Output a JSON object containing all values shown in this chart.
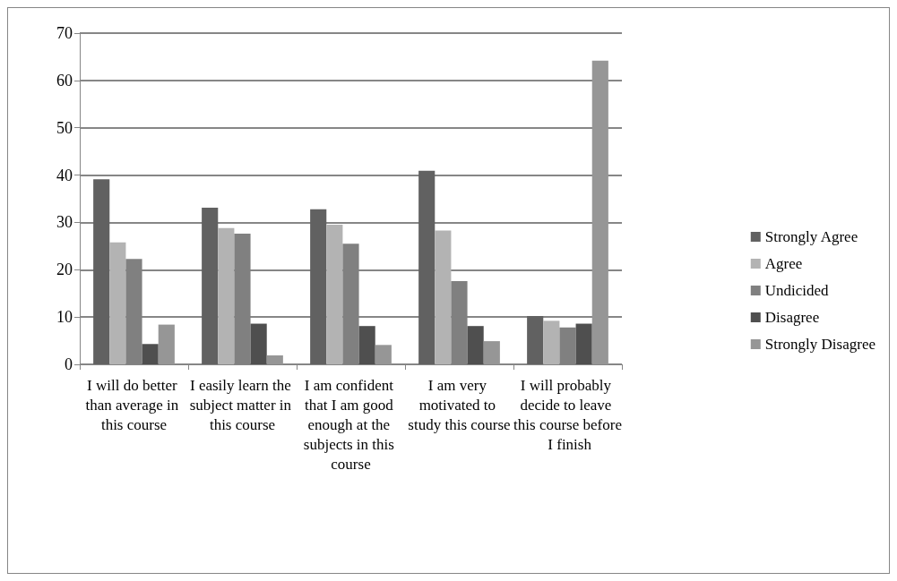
{
  "chart_data": {
    "type": "bar",
    "categories": [
      "I will do better than average in this course",
      "I easily learn the subject matter in this course",
      "I am confident that I am good enough at the subjects in this course",
      "I am very motivated to study this course",
      "I will probably decide to leave this course before I finish"
    ],
    "series": [
      {
        "name": "Strongly Agree",
        "color": "#616161",
        "values": [
          39.1,
          33.1,
          32.8,
          40.9,
          10.2
        ]
      },
      {
        "name": "Agree",
        "color": "#b3b3b3",
        "values": [
          25.8,
          28.8,
          29.5,
          28.3,
          9.2
        ]
      },
      {
        "name": "Undicided",
        "color": "#808080",
        "values": [
          22.3,
          27.6,
          25.5,
          17.6,
          7.8
        ]
      },
      {
        "name": "Disagree",
        "color": "#4f4f4f",
        "values": [
          4.3,
          8.6,
          8.1,
          8.1,
          8.6
        ]
      },
      {
        "name": "Strongly Disagree",
        "color": "#969696",
        "values": [
          8.4,
          1.9,
          4.1,
          4.9,
          64.2
        ]
      }
    ],
    "ylim": [
      0,
      70
    ],
    "yticks": [
      0,
      10,
      20,
      30,
      40,
      50,
      60,
      70
    ],
    "grid": "y",
    "legend": "right"
  }
}
